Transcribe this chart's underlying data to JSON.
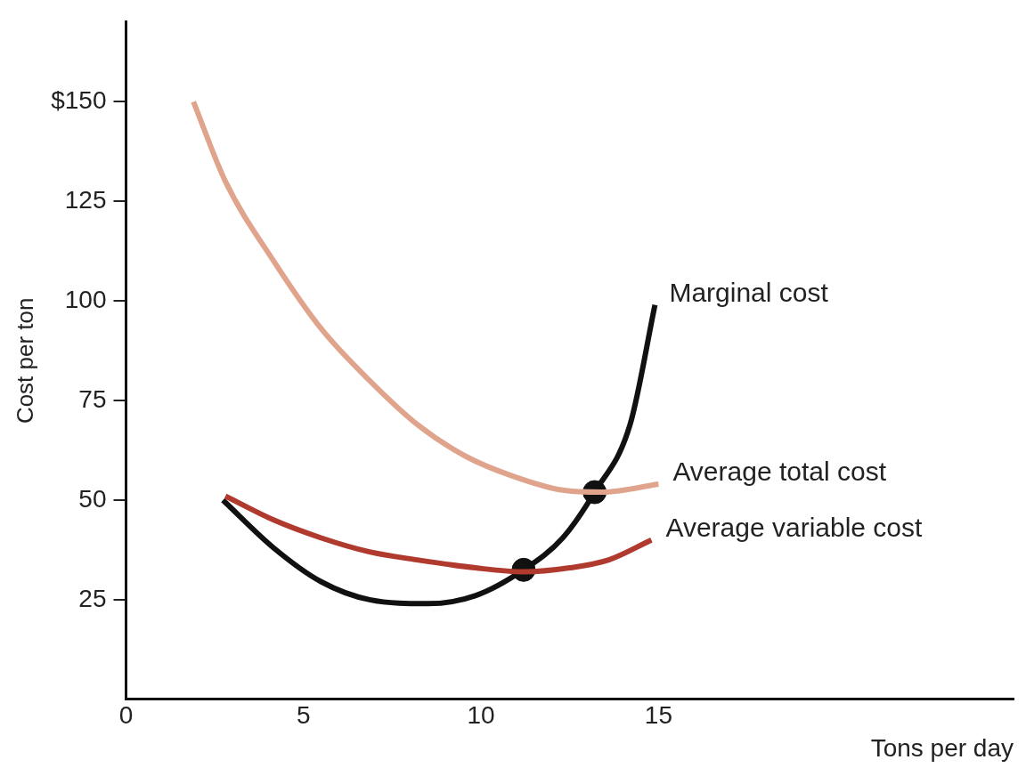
{
  "chart_data": {
    "type": "line",
    "xlabel": "Tons per day",
    "ylabel": "Cost per ton",
    "xlim": [
      0,
      25
    ],
    "ylim": [
      0,
      170
    ],
    "xticks": [
      0,
      5,
      10,
      15
    ],
    "yticks": [
      25,
      50,
      75,
      100,
      125,
      {
        "value": 150,
        "label": "$150"
      }
    ],
    "grid": false,
    "line_style": "solid",
    "series": [
      {
        "name": "Average total cost",
        "color": "#e0a48c",
        "marker": "none",
        "x": [
          1.9,
          2.8,
          4.16,
          5.5,
          6.86,
          8.2,
          9.57,
          10.9,
          12.3,
          13.4,
          15
        ],
        "values": [
          150,
          130,
          110,
          93,
          80,
          69,
          61,
          56,
          52.5,
          52,
          54
        ]
      },
      {
        "name": "Average variable cost",
        "color": "#b03a2e",
        "marker": "none",
        "x": [
          2.8,
          4.16,
          5.5,
          6.86,
          8.2,
          9.84,
          11.2,
          12.5,
          13.6,
          14.8
        ],
        "values": [
          51,
          45,
          40.5,
          37,
          35,
          33,
          32,
          33,
          35,
          40
        ]
      },
      {
        "name": "Marginal cost",
        "color": "#111111",
        "marker": "none",
        "x": [
          2.73,
          4.16,
          5.5,
          6.86,
          8.5,
          9.84,
          11.2,
          12.3,
          13.2,
          14.2,
          14.9
        ],
        "values": [
          50,
          38,
          29.5,
          25,
          24,
          26,
          32.5,
          40.5,
          52,
          69,
          99
        ]
      },
      {
        "type": "scatter",
        "color": "#111111",
        "marker": "circle",
        "x": [
          11.2,
          13.2
        ],
        "values": [
          32.5,
          52
        ]
      }
    ]
  }
}
